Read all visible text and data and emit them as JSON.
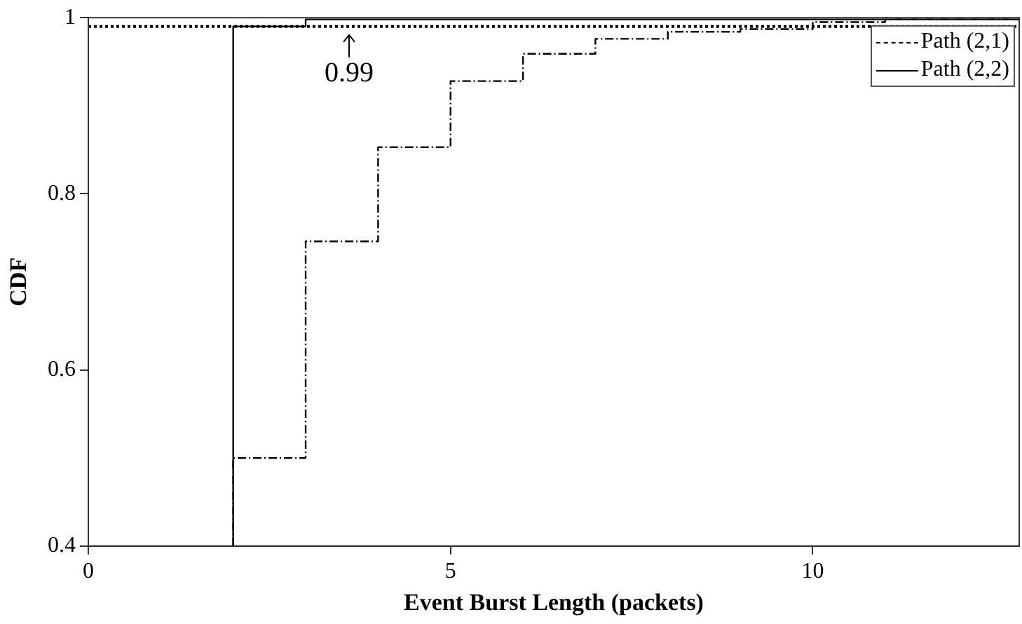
{
  "chart_data": {
    "type": "step",
    "xlabel": "Event Burst Length (packets)",
    "ylabel": "CDF",
    "xlim": [
      0,
      12.85
    ],
    "xticks": [
      0,
      5,
      10
    ],
    "ylim": [
      0.4,
      1
    ],
    "yticks": [
      0.4,
      0.6,
      0.8,
      1
    ],
    "grid": false,
    "legend": "top right",
    "marker": "none",
    "series": [
      {
        "name": "Path (2,1)",
        "color": "#000000",
        "line_style": "dashed",
        "x": [
          2,
          2,
          3,
          4,
          5,
          6,
          7,
          8,
          9,
          10,
          11,
          12.85
        ],
        "values": [
          0.4,
          0.5,
          0.746,
          0.853,
          0.928,
          0.959,
          0.976,
          0.984,
          0.987,
          0.995,
          0.998,
          0.998
        ]
      },
      {
        "name": "Path (2,2)",
        "color": "#000000",
        "line_style": "solid",
        "x": [
          2,
          2,
          3,
          12.85
        ],
        "values": [
          0.4,
          0.99,
          0.998,
          0.998
        ]
      }
    ],
    "ref_lines": [
      {
        "axis": "y",
        "value": 0.99,
        "line_style": "dotted",
        "color": "#000000"
      }
    ],
    "annotations": [
      {
        "text": "0.99",
        "x": 3.6,
        "y": 0.99
      }
    ]
  }
}
